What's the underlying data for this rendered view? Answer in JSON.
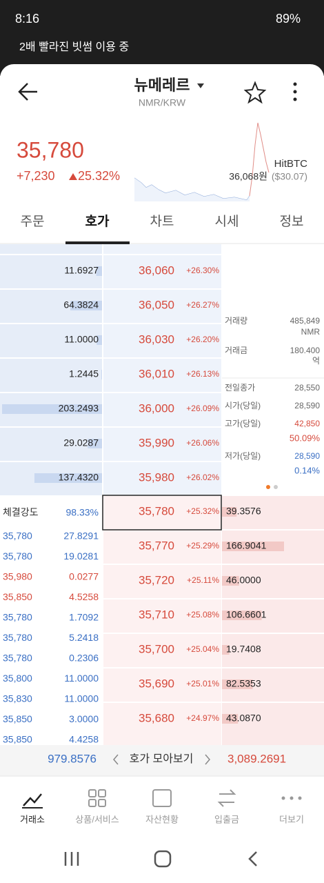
{
  "status_bar": {
    "time": "8:16",
    "battery": "89%"
  },
  "notice": "2배 빨라진 빗썸 이용 중",
  "header": {
    "title": "뉴메레르",
    "subtitle": "NMR/KRW"
  },
  "price": {
    "current": "35,780",
    "change": "+7,230",
    "change_pct": "25.32%",
    "exchange": "HitBTC",
    "ref_price": "36,068원",
    "ref_usd": "($30.07)"
  },
  "tabs": [
    "주문",
    "호가",
    "차트",
    "시세",
    "정보"
  ],
  "asks": [
    {
      "qty": 11.6927,
      "qty_label": "11.6927",
      "price": "36,060",
      "pct": "+26.30%"
    },
    {
      "qty": 64.3824,
      "qty_label": "64.3824",
      "price": "36,050",
      "pct": "+26.27%"
    },
    {
      "qty": 11.0,
      "qty_label": "11.0000",
      "price": "36,030",
      "pct": "+26.20%"
    },
    {
      "qty": 1.2445,
      "qty_label": "1.2445",
      "price": "36,010",
      "pct": "+26.13%"
    },
    {
      "qty": 203.2493,
      "qty_label": "203.2493",
      "price": "36,000",
      "pct": "+26.09%"
    },
    {
      "qty": 29.0287,
      "qty_label": "29.0287",
      "price": "35,990",
      "pct": "+26.06%"
    },
    {
      "qty": 137.432,
      "qty_label": "137.4320",
      "price": "35,980",
      "pct": "+26.02%"
    }
  ],
  "bids": [
    {
      "qty": 39.3576,
      "qty_label": "39.3576",
      "price": "35,780",
      "pct": "+25.32%"
    },
    {
      "qty": 166.9041,
      "qty_label": "166.9041",
      "price": "35,770",
      "pct": "+25.29%"
    },
    {
      "qty": 46.0,
      "qty_label": "46.0000",
      "price": "35,720",
      "pct": "+25.11%"
    },
    {
      "qty": 106.6601,
      "qty_label": "106.6601",
      "price": "35,710",
      "pct": "+25.08%"
    },
    {
      "qty": 19.7408,
      "qty_label": "19.7408",
      "price": "35,700",
      "pct": "+25.04%"
    },
    {
      "qty": 82.5353,
      "qty_label": "82.5353",
      "price": "35,690",
      "pct": "+25.01%"
    },
    {
      "qty": 43.087,
      "qty_label": "43.0870",
      "price": "35,680",
      "pct": "+24.97%"
    }
  ],
  "info": {
    "volume_label": "거래량",
    "volume": "485,849",
    "volume_unit": "NMR",
    "amount_label": "거래금",
    "amount": "180.400",
    "amount_unit": "억",
    "prev_close_label": "전일종가",
    "prev_close": "28,550",
    "open_label": "시가(당일)",
    "open": "28,590",
    "high_label": "고가(당일)",
    "high": "42,850",
    "high_pct": "50.09%",
    "low_label": "저가(당일)",
    "low": "28,590",
    "low_pct": "0.14%"
  },
  "trades": {
    "strength_label": "체결강도",
    "strength": "98.33%",
    "rows": [
      {
        "price": "35,780",
        "qty": "27.8291",
        "side": "sell"
      },
      {
        "price": "35,780",
        "qty": "19.0281",
        "side": "sell"
      },
      {
        "price": "35,980",
        "qty": "0.0277",
        "side": "buy"
      },
      {
        "price": "35,850",
        "qty": "4.5258",
        "side": "buy"
      },
      {
        "price": "35,780",
        "qty": "1.7092",
        "side": "sell"
      },
      {
        "price": "35,780",
        "qty": "5.2418",
        "side": "sell"
      },
      {
        "price": "35,780",
        "qty": "0.2306",
        "side": "sell"
      },
      {
        "price": "35,800",
        "qty": "11.0000",
        "side": "sell"
      },
      {
        "price": "35,830",
        "qty": "11.0000",
        "side": "sell"
      },
      {
        "price": "35,850",
        "qty": "3.0000",
        "side": "sell"
      },
      {
        "price": "35,850",
        "qty": "4.4258",
        "side": "sell"
      }
    ]
  },
  "footer": {
    "ask_total": "979.8576",
    "group_label": "호가 모아보기",
    "bid_total": "3,089.2691"
  },
  "nav": [
    "거래소",
    "상품/서비스",
    "자산현황",
    "입출금",
    "더보기"
  ]
}
